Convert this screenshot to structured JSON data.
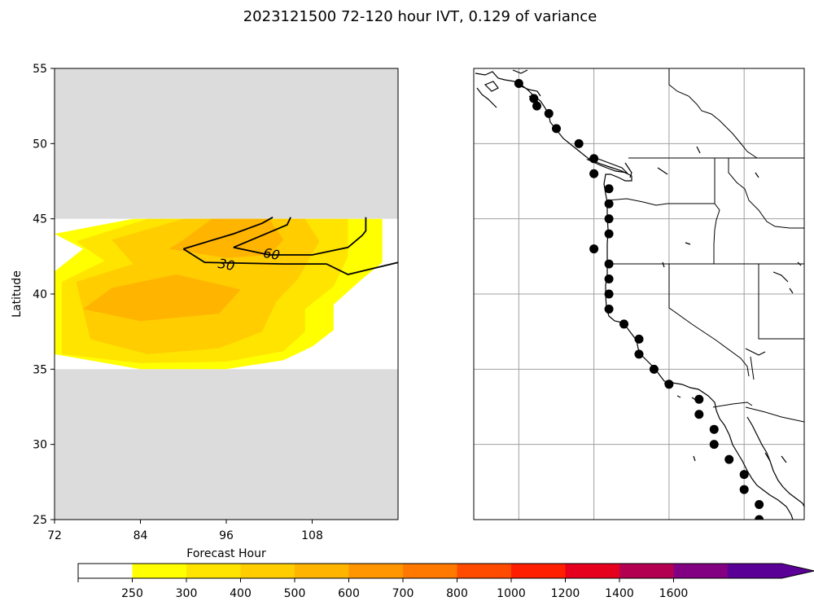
{
  "title": "2023121500 72-120 hour IVT, 0.129 of variance",
  "chart_data": [
    {
      "type": "contour",
      "xlabel": "Forecast Hour",
      "ylabel": "Latitude",
      "xlim": [
        72,
        120
      ],
      "ylim": [
        25,
        55
      ],
      "xticks": [
        "72",
        "84",
        "96",
        "108"
      ],
      "yticks": [
        "25",
        "30",
        "35",
        "40",
        "45",
        "50",
        "55"
      ],
      "data_lat_range": [
        35,
        45
      ],
      "masked_color": "#dcdcdc",
      "filled_levels": [
        {
          "level": 250,
          "color": "#ffff00",
          "polygon": [
            [
              72,
              36
            ],
            [
              84,
              35
            ],
            [
              96,
              35
            ],
            [
              104,
              35.6
            ],
            [
              108,
              36.5
            ],
            [
              111,
              37.6
            ],
            [
              111,
              39.3
            ],
            [
              115,
              41
            ],
            [
              117.8,
              42.1
            ],
            [
              117.8,
              45
            ],
            [
              83,
              45
            ],
            [
              72,
              44
            ],
            [
              76,
              43
            ],
            [
              72,
              41.5
            ]
          ]
        },
        {
          "level": 300,
          "color": "#ffe400",
          "polygon": [
            [
              73,
              36
            ],
            [
              84,
              35.4
            ],
            [
              96,
              35.5
            ],
            [
              104,
              36.2
            ],
            [
              107,
              37.5
            ],
            [
              107,
              39
            ],
            [
              111,
              40.5
            ],
            [
              113,
              42.5
            ],
            [
              113,
              45
            ],
            [
              85,
              45
            ],
            [
              75,
              43.5
            ],
            [
              79,
              42.2
            ],
            [
              73,
              40.8
            ]
          ]
        },
        {
          "level": 400,
          "color": "#ffcd00",
          "polygon": [
            [
              77,
              37
            ],
            [
              85,
              36
            ],
            [
              95,
              36.4
            ],
            [
              101,
              37.5
            ],
            [
              103,
              39.5
            ],
            [
              106,
              41
            ],
            [
              109,
              43.5
            ],
            [
              107,
              45
            ],
            [
              90,
              45
            ],
            [
              80,
              43.6
            ],
            [
              83,
              42
            ],
            [
              75,
              40.8
            ]
          ]
        },
        {
          "level": 500,
          "color": "#ffb400",
          "polygon": [
            [
              76,
              39
            ],
            [
              84,
              38.2
            ],
            [
              95,
              38.7
            ],
            [
              98,
              40.3
            ],
            [
              89,
              41.3
            ],
            [
              80,
              40.4
            ]
          ]
        },
        {
          "level": 500,
          "color": "#ffb400",
          "polygon": [
            [
              88,
              43
            ],
            [
              96,
              42.4
            ],
            [
              102,
              42.6
            ],
            [
              104,
              43.6
            ],
            [
              102,
              45
            ],
            [
              94,
              45
            ],
            [
              90,
              43.6
            ]
          ]
        }
      ],
      "contours": [
        {
          "label": "30",
          "points": [
            [
              90,
              43
            ],
            [
              97,
              44
            ],
            [
              101,
              44.7
            ],
            [
              102.5,
              45.1
            ]
          ]
        },
        {
          "label": "30",
          "points": [
            [
              90,
              43
            ],
            [
              93,
              42.1
            ],
            [
              104,
              42
            ],
            [
              110,
              42
            ],
            [
              113,
              41.3
            ],
            [
              120,
              42.1
            ]
          ]
        },
        {
          "label": "60",
          "points": [
            [
              97,
              43.1
            ],
            [
              102,
              44.1
            ],
            [
              104.5,
              44.6
            ],
            [
              105,
              45.1
            ]
          ]
        },
        {
          "label": "60",
          "points": [
            [
              97,
              43.1
            ],
            [
              102,
              42.6
            ],
            [
              108,
              42.6
            ],
            [
              113,
              43.1
            ],
            [
              115,
              43.9
            ],
            [
              115.5,
              44.2
            ],
            [
              115.5,
              45.1
            ]
          ]
        }
      ],
      "contour_labels": [
        {
          "text": "30",
          "x": 96,
          "y": 41.9,
          "angle": 10
        },
        {
          "text": "60",
          "x": 102.3,
          "y": 42.6,
          "angle": 10
        }
      ]
    },
    {
      "type": "scatter",
      "map_extent": {
        "lon": [
          -133,
          -111
        ],
        "lat": [
          25,
          55
        ]
      },
      "gridlines_lon": [
        -130,
        -125,
        -120,
        -115
      ],
      "gridlines_lat": [
        30,
        35,
        40,
        45,
        50
      ],
      "points": [
        [
          -130,
          54
        ],
        [
          -129,
          53
        ],
        [
          -128.8,
          52.5
        ],
        [
          -128,
          52
        ],
        [
          -127.5,
          51
        ],
        [
          -126,
          50
        ],
        [
          -125,
          49
        ],
        [
          -125,
          48
        ],
        [
          -124,
          47
        ],
        [
          -124,
          46
        ],
        [
          -124,
          45
        ],
        [
          -124,
          44
        ],
        [
          -125,
          43
        ],
        [
          -124,
          42
        ],
        [
          -124,
          41
        ],
        [
          -124,
          40
        ],
        [
          -124,
          39
        ],
        [
          -123,
          38
        ],
        [
          -122,
          37
        ],
        [
          -122,
          36
        ],
        [
          -121,
          35
        ],
        [
          -120,
          34
        ],
        [
          -118,
          33
        ],
        [
          -118,
          32
        ],
        [
          -117,
          31
        ],
        [
          -117,
          30
        ],
        [
          -116,
          29
        ],
        [
          -115,
          28
        ],
        [
          -115,
          27
        ],
        [
          -114,
          26
        ],
        [
          -114,
          25
        ]
      ]
    }
  ],
  "colorbar": {
    "labels": [
      "250",
      "300",
      "400",
      "500",
      "600",
      "700",
      "800",
      "1000",
      "1200",
      "1400",
      "1600"
    ],
    "colors": [
      "#ffffff",
      "#ffff00",
      "#ffe400",
      "#ffcd00",
      "#ffb400",
      "#ff9600",
      "#ff7800",
      "#ff4b00",
      "#ff1e00",
      "#e6001e",
      "#b40050",
      "#820082",
      "#5a0096"
    ]
  }
}
